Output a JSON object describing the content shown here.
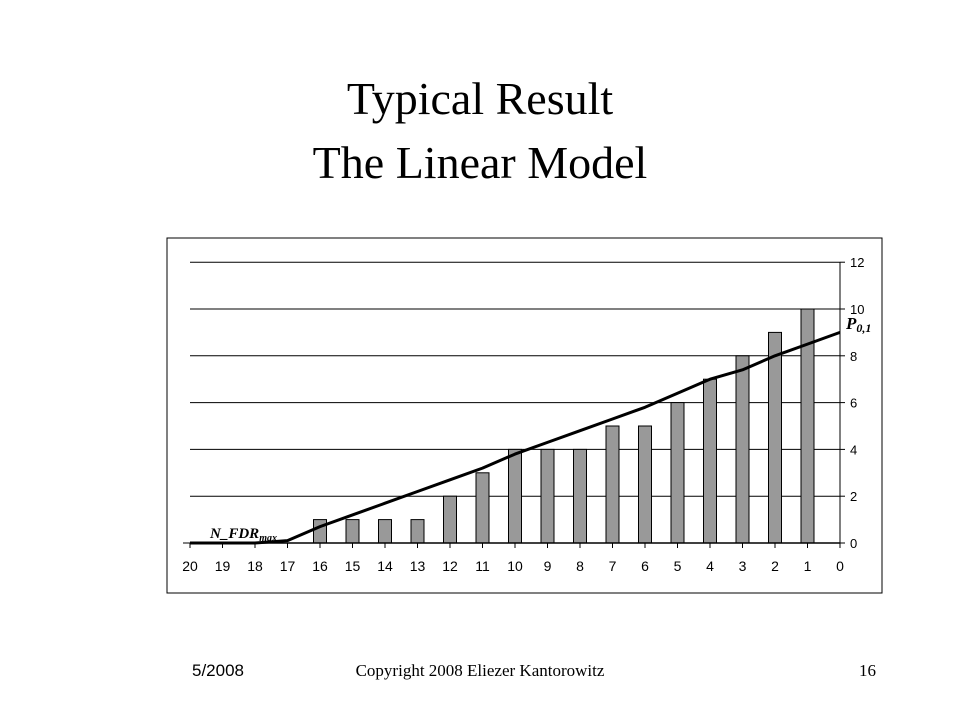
{
  "slide": {
    "title_line1": "Typical Result",
    "title_line2": "The Linear Model",
    "footer_date": "5/2008",
    "footer_copyright": "Copyright 2008 Eliezer Kantorowitz",
    "page_number": "16"
  },
  "chart_data": {
    "type": "bar",
    "categories": [
      "20",
      "19",
      "18",
      "17",
      "16",
      "15",
      "14",
      "13",
      "12",
      "11",
      "10",
      "9",
      "8",
      "7",
      "6",
      "5",
      "4",
      "3",
      "2",
      "1",
      "0"
    ],
    "series": [
      {
        "type": "bar",
        "values": [
          0,
          0,
          0,
          0,
          1,
          1,
          1,
          1,
          2,
          3,
          4,
          4,
          4,
          5,
          5,
          6,
          7,
          8,
          9,
          10,
          null
        ]
      },
      {
        "type": "line",
        "values": [
          0,
          0,
          0,
          0.1,
          0.7,
          1.2,
          1.7,
          2.2,
          2.7,
          3.2,
          3.8,
          4.3,
          4.8,
          5.3,
          5.8,
          6.4,
          7.0,
          7.4,
          8.0,
          8.5,
          9.0
        ]
      }
    ],
    "y_axis": {
      "position": "right",
      "ylim": [
        0,
        12
      ],
      "ticks": [
        0,
        2,
        4,
        6,
        8,
        10,
        12
      ]
    },
    "grid": true,
    "legend": "none",
    "annotations": [
      {
        "text": "N_FDR",
        "subscript": "max",
        "near_category": "18"
      },
      {
        "text": "P",
        "subscript": "0,1",
        "near_category": "0"
      }
    ],
    "colors": {
      "bar_fill": "#999999",
      "bar_stroke": "#000000",
      "line": "#000000",
      "grid": "#000000"
    }
  }
}
